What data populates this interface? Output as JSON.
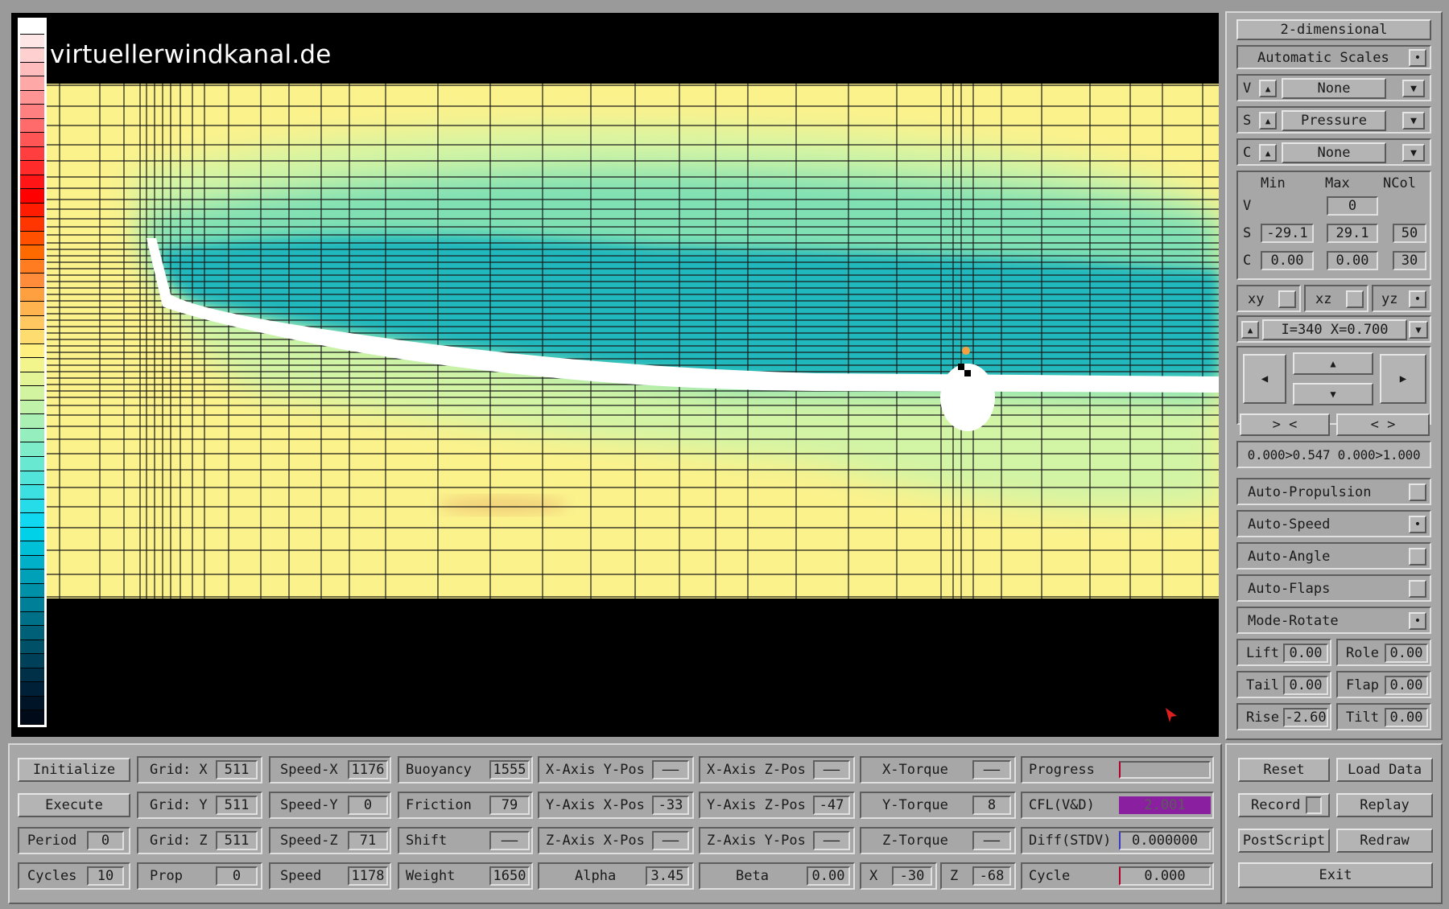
{
  "watermark": "virtuellerwindkanal.de",
  "colors": {
    "field_background": "#fbf28c",
    "field_low": "#16b4bd",
    "field_mid": "#7fe0b4",
    "field_light": "#d2f4a5",
    "grid_line": "#1a1a1a",
    "progress_fill": "#8a1fa0",
    "cursor_arrow": "#dd1f1f"
  },
  "colorbar": [
    "#ffffff",
    "#ffe6e6",
    "#ffd0d0",
    "#ffbcbc",
    "#ffa8a8",
    "#ff9494",
    "#ff8080",
    "#ff6a6a",
    "#ff5555",
    "#ff3f3f",
    "#ff2a2a",
    "#ff1515",
    "#ff0000",
    "#ff1c00",
    "#ff3600",
    "#ff5000",
    "#ff6a00",
    "#ff7c20",
    "#ff8c3a",
    "#ffa040",
    "#ffb450",
    "#ffc860",
    "#ffdc70",
    "#fff080",
    "#f2f48c",
    "#e2f496",
    "#d2f4a0",
    "#c0f2aa",
    "#aaf0b4",
    "#94eebe",
    "#7eecc8",
    "#68e8d0",
    "#52e4d8",
    "#3ce0e0",
    "#26dce8",
    "#10d8f0",
    "#00d0e8",
    "#00c0d8",
    "#00b0c8",
    "#00a0b8",
    "#0090a8",
    "#008098",
    "#007088",
    "#006078",
    "#005068",
    "#004058",
    "#003048",
    "#002038",
    "#001428",
    "#000a18"
  ],
  "side": {
    "mode_button": "2-dimensional",
    "auto_scales": "Automatic Scales",
    "v_prefix": "V",
    "v_select": "None",
    "s_prefix": "S",
    "s_select": "Pressure",
    "c_prefix": "C",
    "c_select": "None",
    "hdr_min": "Min",
    "hdr_max": "Max",
    "hdr_ncol": "NCol",
    "row_v": "V",
    "v_max": "0",
    "row_s": "S",
    "s_min": "-29.1",
    "s_max": "29.1",
    "s_ncol": "50",
    "row_c": "C",
    "c_min": "0.00",
    "c_max": "0.00",
    "c_ncol": "30",
    "plane_xy": "xy",
    "plane_xz": "xz",
    "plane_yz": "yz",
    "slice": "I=340  X=0.700",
    "zoom_in": "> <",
    "zoom_out": "< >",
    "range_text": "0.000>0.547 0.000>1.000",
    "auto_propulsion": "Auto-Propulsion",
    "auto_speed": "Auto-Speed",
    "auto_angle": "Auto-Angle",
    "auto_flaps": "Auto-Flaps",
    "mode_rotate": "Mode-Rotate",
    "lift_label": "Lift",
    "lift_value": "0.00",
    "role_label": "Role",
    "role_value": "0.00",
    "tail_label": "Tail",
    "tail_value": "0.00",
    "flap_label": "Flap",
    "flap_value": "0.00",
    "rise_label": "Rise",
    "rise_value": "-2.60",
    "tilt_label": "Tilt",
    "tilt_value": "0.00"
  },
  "bottom": {
    "initialize": "Initialize",
    "execute": "Execute",
    "period_label": "Period",
    "period_value": "0",
    "cycles_label": "Cycles",
    "cycles_value": "10",
    "grid_x_label": "Grid: X",
    "grid_x_value": "511",
    "grid_y_label": "Grid: Y",
    "grid_y_value": "511",
    "grid_z_label": "Grid: Z",
    "grid_z_value": "511",
    "prop_label": "Prop",
    "prop_value": "0",
    "speed_x_label": "Speed-X",
    "speed_x_value": "1176",
    "speed_y_label": "Speed-Y",
    "speed_y_value": "0",
    "speed_z_label": "Speed-Z",
    "speed_z_value": "71",
    "speed_label": "Speed",
    "speed_value": "1178",
    "buoyancy_label": "Buoyancy",
    "buoyancy_value": "1555",
    "friction_label": "Friction",
    "friction_value": "79",
    "shift_label": "Shift",
    "shift_value": "——",
    "weight_label": "Weight",
    "weight_value": "1650",
    "xaxis_ypos_label": "X-Axis Y-Pos",
    "xaxis_ypos_value": "——",
    "yaxis_xpos_label": "Y-Axis X-Pos",
    "yaxis_xpos_value": "-33",
    "zaxis_xpos_label": "Z-Axis X-Pos",
    "zaxis_xpos_value": "——",
    "alpha_label": "Alpha",
    "alpha_value": "3.45",
    "xaxis_zpos_label": "X-Axis Z-Pos",
    "xaxis_zpos_value": "——",
    "yaxis_zpos_label": "Y-Axis Z-Pos",
    "yaxis_zpos_value": "-47",
    "zaxis_ypos_label": "Z-Axis Y-Pos",
    "zaxis_ypos_value": "——",
    "beta_label": "Beta",
    "beta_value": "0.00",
    "xtorque_label": "X-Torque",
    "xtorque_value": "——",
    "ytorque_label": "Y-Torque",
    "ytorque_value": "8",
    "ztorque_label": "Z-Torque",
    "ztorque_value": "——",
    "x_label": "X",
    "x_value": "-30",
    "z_label": "Z",
    "z_value": "-68",
    "progress_label": "Progress",
    "progress_fraction": 0.0,
    "cfl_label": "CFL(V&D)",
    "cfl_value": "2.001",
    "diff_label": "Diff(STDV)",
    "diff_value": "0.000000",
    "cycle_label": "Cycle",
    "cycle_value": "0.000",
    "reset": "Reset",
    "load_data": "Load Data",
    "record": "Record",
    "replay": "Replay",
    "postscript": "PostScript",
    "redraw": "Redraw",
    "exit": "Exit"
  }
}
